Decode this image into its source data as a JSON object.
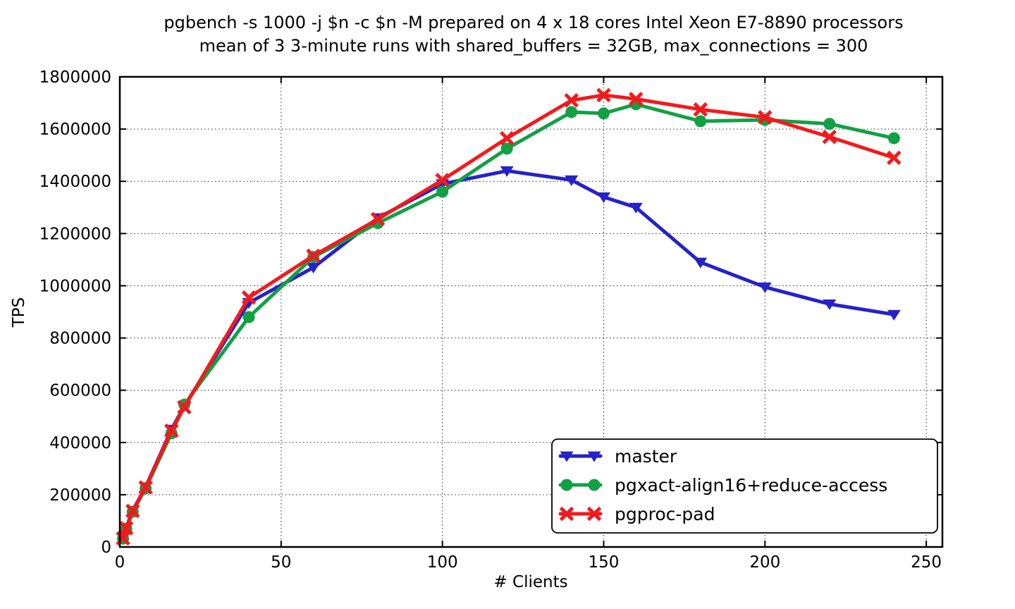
{
  "chart_data": {
    "type": "line",
    "title": [
      "pgbench -s 1000 -j $n -c $n -M prepared on 4 x 18 cores Intel Xeon E7-8890 processors",
      "mean of 3 3-minute runs with shared_buffers = 32GB, max_connections = 300"
    ],
    "xlabel": "# Clients",
    "ylabel": "TPS",
    "xlim": [
      0,
      255
    ],
    "ylim": [
      0,
      1800000
    ],
    "x_ticks": [
      0,
      50,
      100,
      150,
      200,
      250
    ],
    "y_ticks": [
      0,
      200000,
      400000,
      600000,
      800000,
      1000000,
      1200000,
      1400000,
      1600000,
      1800000
    ],
    "grid": true,
    "grid_style": "dotted",
    "legend_position": "lower right",
    "x": [
      1,
      2,
      4,
      8,
      16,
      20,
      40,
      60,
      80,
      100,
      120,
      140,
      150,
      160,
      180,
      200,
      220,
      240
    ],
    "series": [
      {
        "name": "master",
        "color": "#2622c8",
        "marker": "triangle-down",
        "values": [
          35000,
          75000,
          140000,
          230000,
          450000,
          540000,
          935000,
          1070000,
          1260000,
          1390000,
          1440000,
          1405000,
          1340000,
          1300000,
          1090000,
          995000,
          930000,
          890000
        ]
      },
      {
        "name": "pgxact-align16+reduce-access",
        "color": "#12a045",
        "marker": "circle",
        "values": [
          32000,
          70000,
          135000,
          225000,
          435000,
          545000,
          880000,
          1110000,
          1240000,
          1360000,
          1525000,
          1665000,
          1660000,
          1695000,
          1630000,
          1635000,
          1620000,
          1565000
        ]
      },
      {
        "name": "pgproc-pad",
        "color": "#f21a1c",
        "marker": "x",
        "values": [
          33000,
          72000,
          138000,
          228000,
          445000,
          535000,
          955000,
          1115000,
          1255000,
          1405000,
          1565000,
          1710000,
          1730000,
          1715000,
          1675000,
          1645000,
          1570000,
          1490000
        ]
      }
    ]
  }
}
